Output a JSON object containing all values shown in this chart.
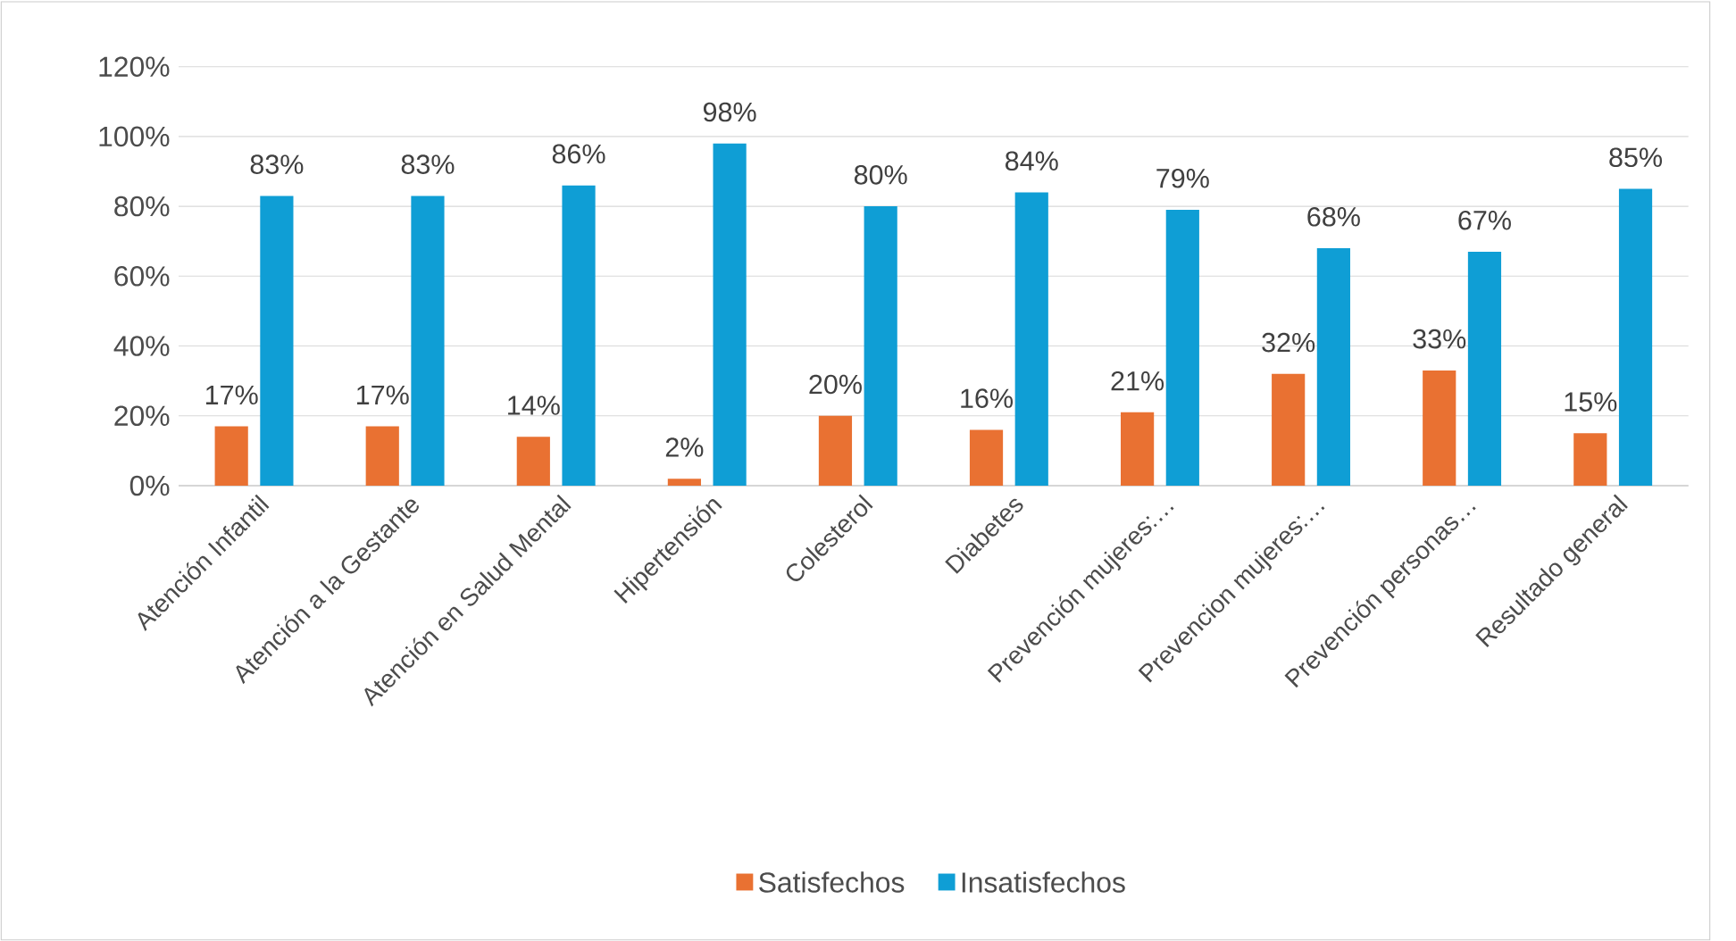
{
  "chart_data": {
    "type": "bar",
    "categories": [
      "Atención Infantil",
      "Atención a la Gestante",
      "Atención en Salud Mental",
      "Hipertensión",
      "Colesterol",
      "Diabetes",
      "Prevención mujeres:…",
      "Prevencion mujeres:…",
      "Prevención personas…",
      "Resultado general"
    ],
    "series": [
      {
        "name": "Satisfechos",
        "color": "#e97132",
        "values": [
          17,
          17,
          14,
          2,
          20,
          16,
          21,
          32,
          33,
          15
        ],
        "value_labels": [
          "17%",
          "17%",
          "14%",
          "2%",
          "20%",
          "16%",
          "21%",
          "32%",
          "33%",
          "15%"
        ]
      },
      {
        "name": "Insatisfechos",
        "color": "#0f9ed5",
        "values": [
          83,
          83,
          86,
          98,
          80,
          84,
          79,
          68,
          67,
          85
        ],
        "value_labels": [
          "83%",
          "83%",
          "86%",
          "98%",
          "80%",
          "84%",
          "79%",
          "68%",
          "67%",
          "85%"
        ]
      }
    ],
    "ylim": [
      0,
      120
    ],
    "yticks": [
      {
        "value": 0,
        "label": "0%"
      },
      {
        "value": 20,
        "label": "20%"
      },
      {
        "value": 40,
        "label": "40%"
      },
      {
        "value": 60,
        "label": "60%"
      },
      {
        "value": 80,
        "label": "80%"
      },
      {
        "value": 100,
        "label": "100%"
      },
      {
        "value": 120,
        "label": "120%"
      }
    ],
    "grid": "y",
    "legend": "bottom"
  }
}
